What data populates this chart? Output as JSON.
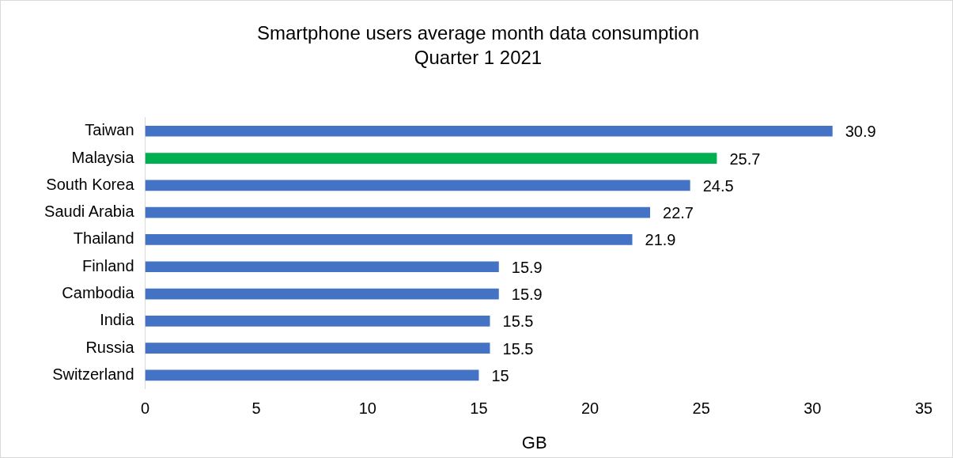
{
  "chart_data": {
    "type": "bar",
    "orientation": "horizontal",
    "title": "Smartphone users average month data consumption",
    "subtitle": "Quarter 1 2021",
    "xlabel": "GB",
    "categories": [
      "Taiwan",
      "Malaysia",
      "South Korea",
      "Saudi Arabia",
      "Thailand",
      "Finland",
      "Cambodia",
      "India",
      "Russia",
      "Switzerland"
    ],
    "values": [
      30.9,
      25.7,
      24.5,
      22.7,
      21.9,
      15.9,
      15.9,
      15.5,
      15.5,
      15
    ],
    "colors": [
      "#4472c4",
      "#00b050",
      "#4472c4",
      "#4472c4",
      "#4472c4",
      "#4472c4",
      "#4472c4",
      "#4472c4",
      "#4472c4",
      "#4472c4"
    ],
    "xlim": [
      0,
      35
    ],
    "xticks": [
      0,
      5,
      10,
      15,
      20,
      25,
      30,
      35
    ],
    "grid": false,
    "legend": false,
    "data_labels": true
  }
}
